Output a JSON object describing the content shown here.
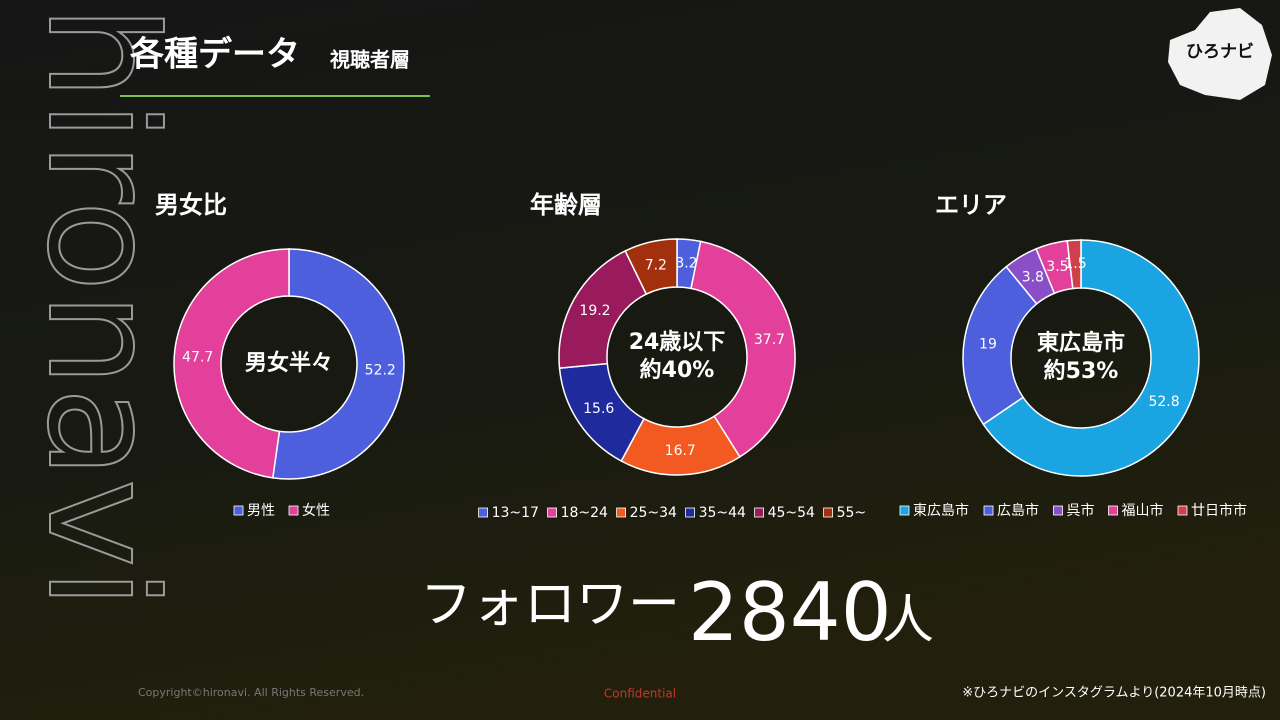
{
  "header": {
    "title": "各種データ",
    "subtitle": "視聴者層"
  },
  "logo": "ひろナビ",
  "watermark": "hironavi",
  "chart_data": [
    {
      "type": "pie",
      "title": "男女比",
      "center_label": [
        "男女半々"
      ],
      "categories": [
        "男性",
        "女性"
      ],
      "values": [
        52.2,
        47.7
      ],
      "colors": [
        "#4d5fdc",
        "#e2409a"
      ]
    },
    {
      "type": "pie",
      "title": "年齢層",
      "center_label": [
        "24歳以下",
        "約40%"
      ],
      "categories": [
        "13~17",
        "18~24",
        "25~34",
        "35~44",
        "45~54",
        "55~"
      ],
      "values": [
        3.2,
        37.7,
        16.7,
        15.6,
        19.2,
        7.2
      ],
      "colors": [
        "#4d5fdc",
        "#e2409a",
        "#f25a22",
        "#1f2a9c",
        "#9a1a5e",
        "#a3300c"
      ]
    },
    {
      "type": "pie",
      "title": "エリア",
      "center_label": [
        "東広島市",
        "約53%"
      ],
      "categories": [
        "東広島市",
        "広島市",
        "呉市",
        "福山市",
        "廿日市市"
      ],
      "values": [
        52.8,
        19,
        3.8,
        3.5,
        1.5
      ],
      "colors": [
        "#1ba4e2",
        "#4d5fdc",
        "#8a4fc8",
        "#e2409a",
        "#d0404c"
      ]
    }
  ],
  "followers": {
    "label": "フォロワー",
    "count": 2840,
    "unit": "人"
  },
  "footer": {
    "copyright": "Copyright©hironavi. All Rights Reserved.",
    "confidential": "Confidential",
    "source": "※ひろナビのインスタグラムより(2024年10月時点)"
  }
}
